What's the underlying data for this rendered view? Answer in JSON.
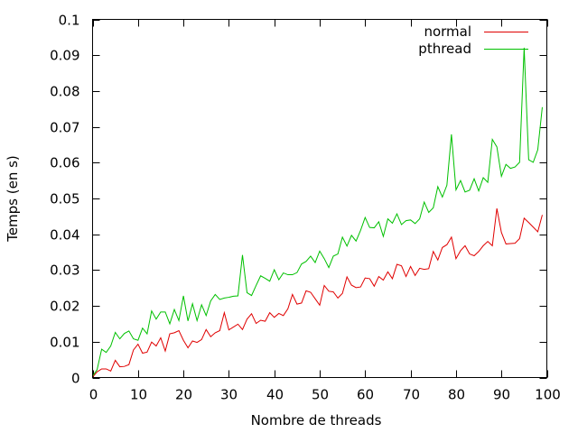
{
  "chart_data": {
    "type": "line",
    "title": "",
    "xlabel": "Nombre de threads",
    "ylabel": "Temps (en s)",
    "xlim": [
      0,
      100
    ],
    "ylim": [
      0,
      0.1
    ],
    "xticks": [
      0,
      10,
      20,
      30,
      40,
      50,
      60,
      70,
      80,
      90,
      100
    ],
    "xtick_labels": [
      "0",
      "10",
      "20",
      "30",
      "40",
      "50",
      "60",
      "70",
      "80",
      "90",
      "100"
    ],
    "yticks": [
      0,
      0.01,
      0.02,
      0.03,
      0.04,
      0.05,
      0.06,
      0.07,
      0.08,
      0.09,
      0.1
    ],
    "ytick_labels": [
      "0",
      "0.01",
      "0.02",
      "0.03",
      "0.04",
      "0.05",
      "0.06",
      "0.07",
      "0.08",
      "0.09",
      "0.1"
    ],
    "grid": false,
    "legend_position": "top-right",
    "x": [
      0,
      1,
      2,
      3,
      4,
      5,
      6,
      7,
      8,
      9,
      10,
      11,
      12,
      13,
      14,
      15,
      16,
      17,
      18,
      19,
      20,
      21,
      22,
      23,
      24,
      25,
      26,
      27,
      28,
      29,
      30,
      31,
      32,
      33,
      34,
      35,
      36,
      37,
      38,
      39,
      40,
      41,
      42,
      43,
      44,
      45,
      46,
      47,
      48,
      49,
      50,
      51,
      52,
      53,
      54,
      55,
      56,
      57,
      58,
      59,
      60,
      61,
      62,
      63,
      64,
      65,
      66,
      67,
      68,
      69,
      70,
      71,
      72,
      73,
      74,
      75,
      76,
      77,
      78,
      79,
      80,
      81,
      82,
      83,
      84,
      85,
      86,
      87,
      88,
      89,
      90,
      91,
      92,
      93,
      94,
      95,
      96,
      97,
      98,
      99
    ],
    "series": [
      {
        "name": "normal",
        "color": "#e00000",
        "values": [
          0.0001,
          0.0016,
          0.0024,
          0.0024,
          0.0018,
          0.0048,
          0.003,
          0.0031,
          0.0036,
          0.0077,
          0.0093,
          0.0068,
          0.0071,
          0.0099,
          0.0088,
          0.0111,
          0.0074,
          0.0122,
          0.0125,
          0.0131,
          0.0104,
          0.0083,
          0.0102,
          0.0098,
          0.0106,
          0.0134,
          0.0114,
          0.0125,
          0.0131,
          0.0181,
          0.0133,
          0.0141,
          0.0149,
          0.0134,
          0.0163,
          0.0178,
          0.0151,
          0.016,
          0.0157,
          0.0181,
          0.0168,
          0.0179,
          0.0173,
          0.0192,
          0.0232,
          0.0205,
          0.0208,
          0.0242,
          0.0238,
          0.022,
          0.0202,
          0.0257,
          0.0241,
          0.0239,
          0.0222,
          0.0235,
          0.0281,
          0.0258,
          0.0251,
          0.0253,
          0.0278,
          0.0276,
          0.0255,
          0.0282,
          0.0272,
          0.0295,
          0.0276,
          0.0316,
          0.0312,
          0.0282,
          0.031,
          0.0285,
          0.0305,
          0.0302,
          0.0304,
          0.0352,
          0.0328,
          0.0363,
          0.0371,
          0.0392,
          0.0332,
          0.0354,
          0.0368,
          0.0345,
          0.034,
          0.0352,
          0.0368,
          0.038,
          0.0368,
          0.0472,
          0.0405,
          0.0373,
          0.0374,
          0.0375,
          0.0388,
          0.0445,
          0.0433,
          0.042,
          0.0407,
          0.0454
        ]
      },
      {
        "name": "pthread",
        "color": "#00c000",
        "values": [
          0.0004,
          0.0022,
          0.0079,
          0.007,
          0.0088,
          0.0126,
          0.0108,
          0.0123,
          0.013,
          0.0108,
          0.0104,
          0.0138,
          0.0122,
          0.0186,
          0.0163,
          0.0183,
          0.0183,
          0.015,
          0.019,
          0.0159,
          0.0228,
          0.0158,
          0.0206,
          0.0159,
          0.0203,
          0.0173,
          0.0214,
          0.0232,
          0.0218,
          0.0222,
          0.0224,
          0.0227,
          0.0228,
          0.0342,
          0.0237,
          0.0229,
          0.0257,
          0.0284,
          0.0277,
          0.0269,
          0.0301,
          0.0273,
          0.0292,
          0.0287,
          0.0287,
          0.0293,
          0.0317,
          0.0324,
          0.0339,
          0.0321,
          0.0353,
          0.0332,
          0.0307,
          0.0339,
          0.0345,
          0.0392,
          0.0367,
          0.0397,
          0.0381,
          0.0411,
          0.0447,
          0.0419,
          0.0418,
          0.0435,
          0.0394,
          0.0443,
          0.0431,
          0.0457,
          0.0427,
          0.0438,
          0.044,
          0.043,
          0.0443,
          0.049,
          0.0461,
          0.0474,
          0.0533,
          0.0504,
          0.0537,
          0.0679,
          0.0524,
          0.055,
          0.0518,
          0.0523,
          0.0555,
          0.0521,
          0.0558,
          0.0545,
          0.0665,
          0.0644,
          0.0562,
          0.0595,
          0.0584,
          0.0588,
          0.0601,
          0.0921,
          0.0608,
          0.0601,
          0.0636,
          0.0755
        ]
      }
    ]
  }
}
